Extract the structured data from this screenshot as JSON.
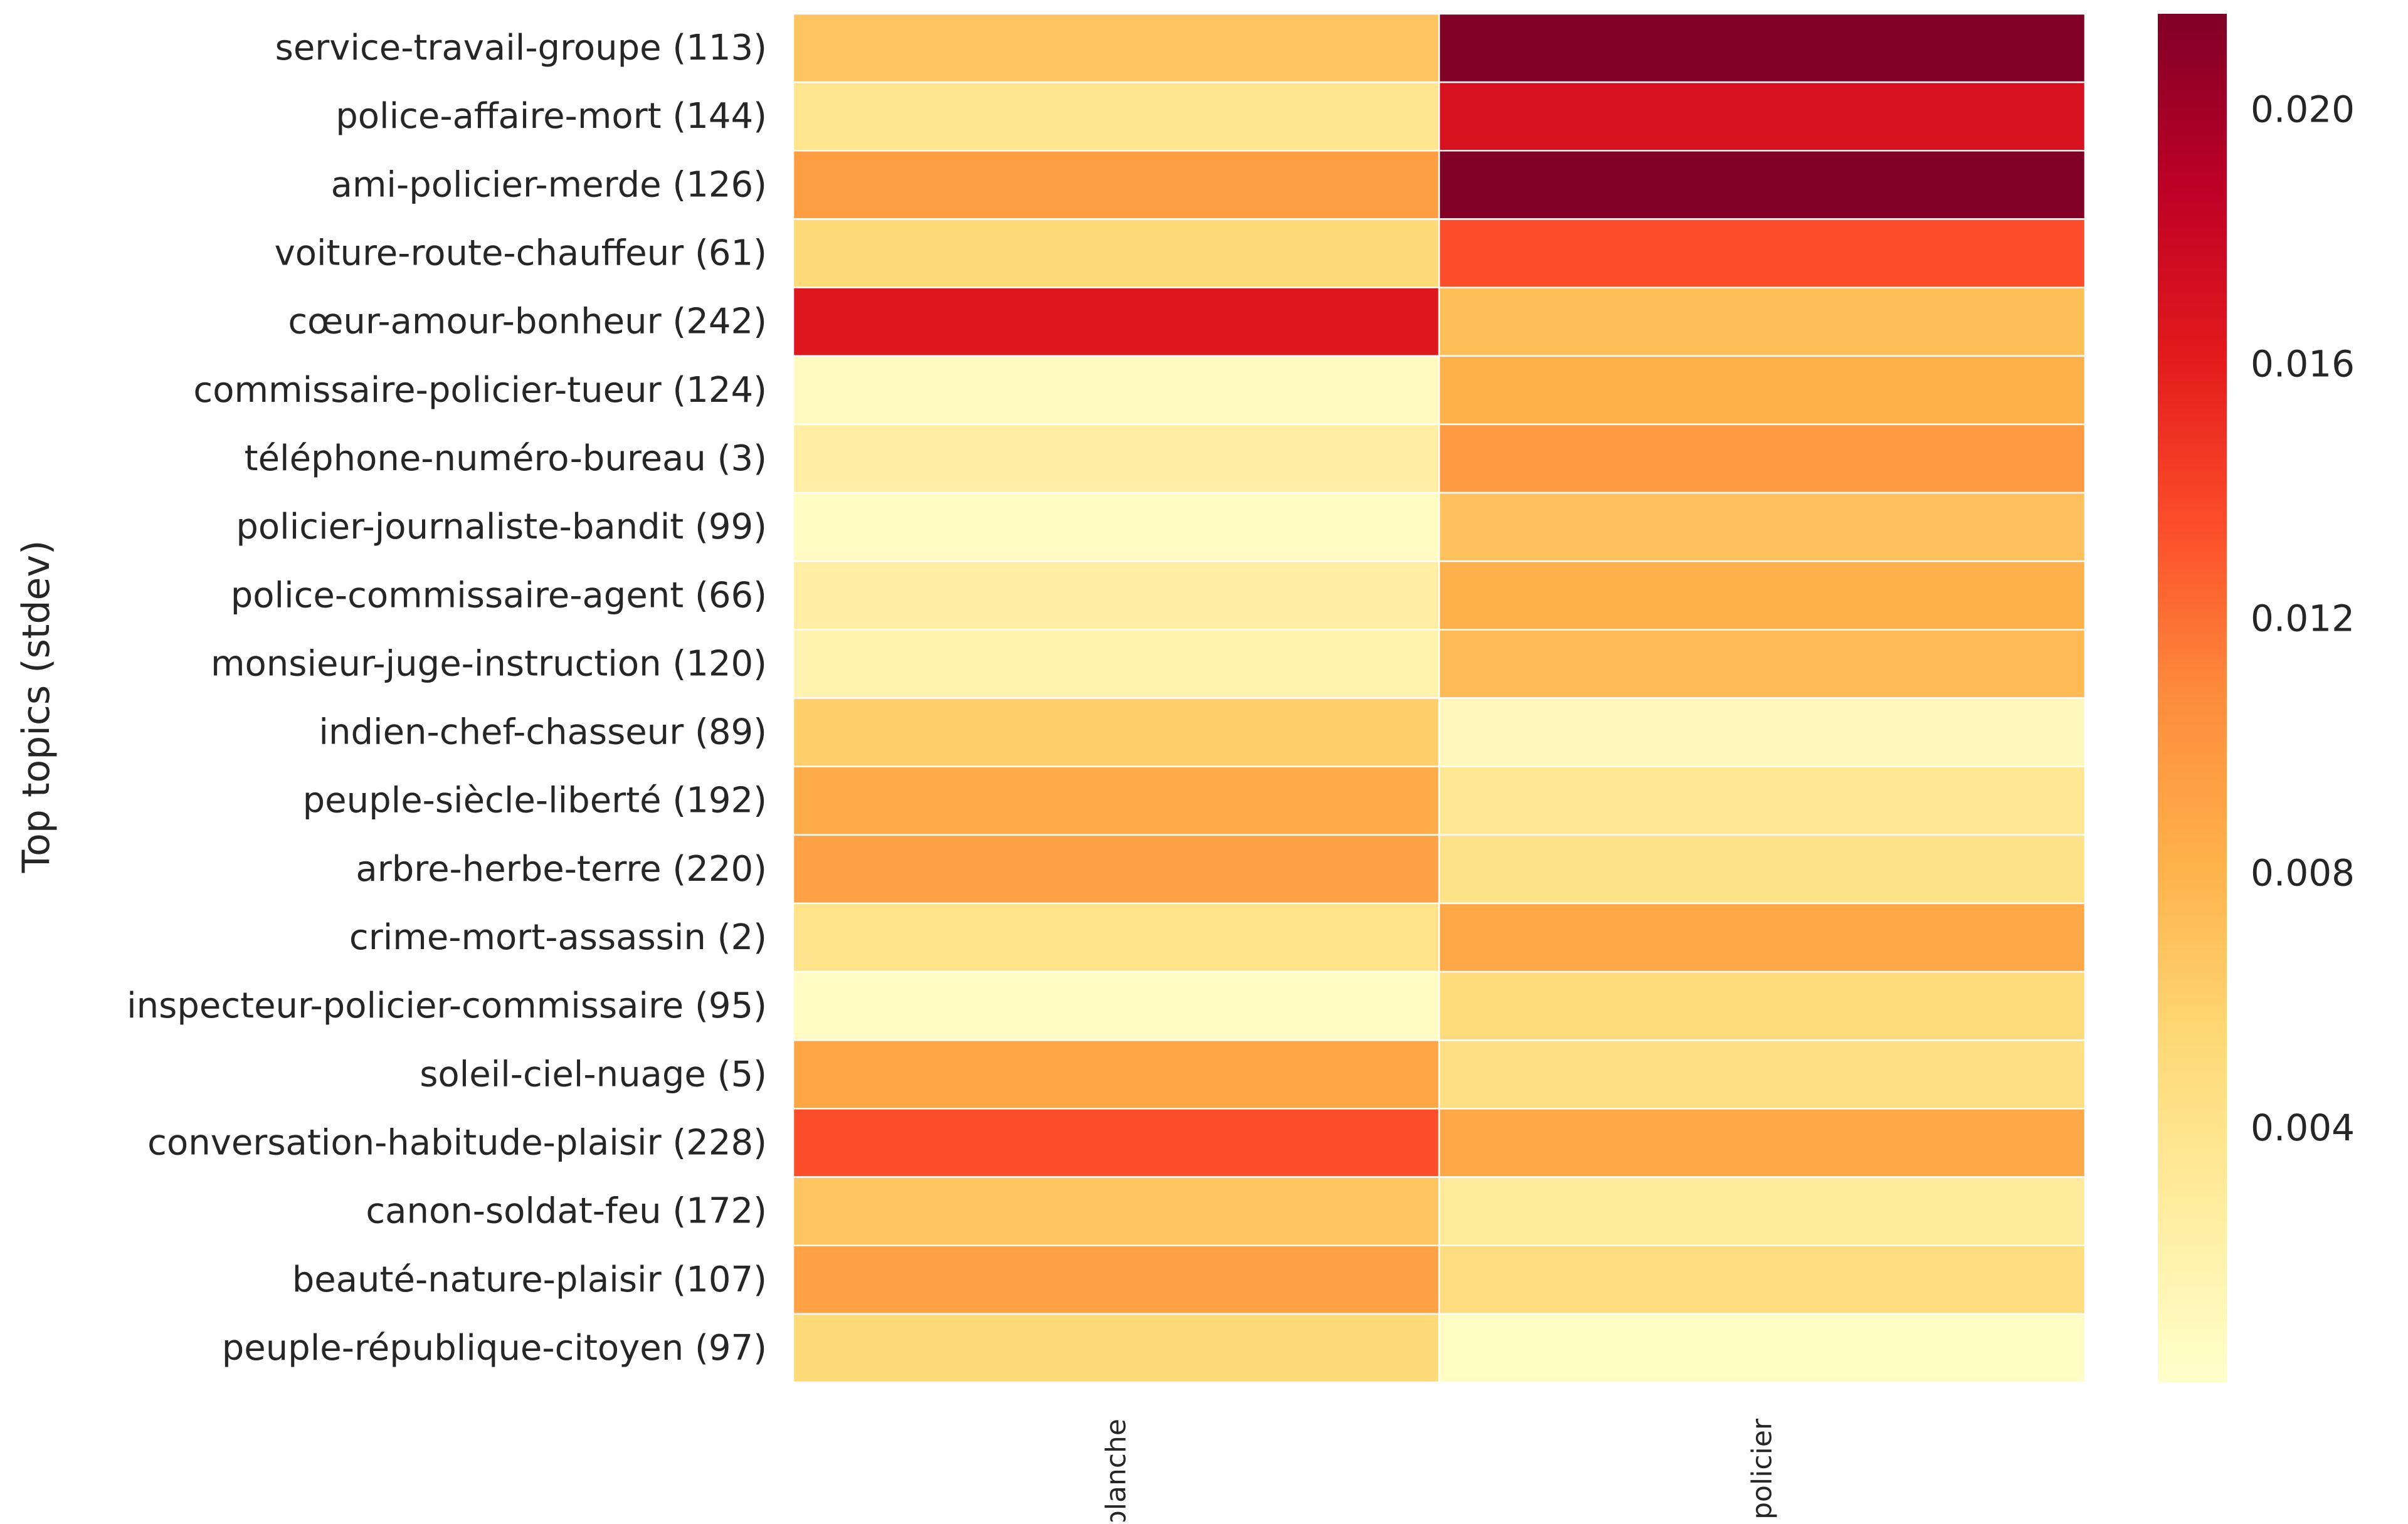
{
  "chart_data": {
    "type": "heatmap",
    "title": "",
    "xlabel": "",
    "ylabel": "Top topics (stdev)",
    "columns": [
      "blanche",
      "policier"
    ],
    "rows": [
      "service-travail-groupe (113)",
      "police-affaire-mort (144)",
      "ami-policier-merde (126)",
      "voiture-route-chauffeur (61)",
      "cœur-amour-bonheur (242)",
      "commissaire-policier-tueur (124)",
      "téléphone-numéro-bureau (3)",
      "policier-journaliste-bandit (99)",
      "police-commissaire-agent (66)",
      "monsieur-juge-instruction (120)",
      "indien-chef-chasseur (89)",
      "peuple-siècle-liberté (192)",
      "arbre-herbe-terre (220)",
      "crime-mort-assassin (2)",
      "inspecteur-policier-commissaire (95)",
      "soleil-ciel-nuage (5)",
      "conversation-habitude-plaisir (228)",
      "canon-soldat-feu (172)",
      "beauté-nature-plaisir (107)",
      "peuple-république-citoyen (97)"
    ],
    "values": [
      [
        0.0068,
        0.0225
      ],
      [
        0.0038,
        0.017
      ],
      [
        0.0095,
        0.0225
      ],
      [
        0.0052,
        0.0135
      ],
      [
        0.0165,
        0.0072
      ],
      [
        0.0008,
        0.0082
      ],
      [
        0.0025,
        0.0098
      ],
      [
        0.0006,
        0.007
      ],
      [
        0.0025,
        0.0082
      ],
      [
        0.0018,
        0.0075
      ],
      [
        0.006,
        0.001
      ],
      [
        0.0085,
        0.0035
      ],
      [
        0.0092,
        0.0042
      ],
      [
        0.004,
        0.0088
      ],
      [
        0.0006,
        0.005
      ],
      [
        0.009,
        0.0045
      ],
      [
        0.0135,
        0.0088
      ],
      [
        0.0068,
        0.003
      ],
      [
        0.0092,
        0.0048
      ],
      [
        0.0052,
        0.0005
      ]
    ],
    "colorscale": "YlOrRd",
    "vmin": 0.0,
    "vmax": 0.0215,
    "colorbar_ticks": [
      0.004,
      0.008,
      0.012,
      0.016,
      0.02
    ],
    "colorbar_tick_labels": [
      "0.004",
      "0.008",
      "0.012",
      "0.016",
      "0.020"
    ],
    "grid": false,
    "cell_separator_color": "#ffffff"
  }
}
